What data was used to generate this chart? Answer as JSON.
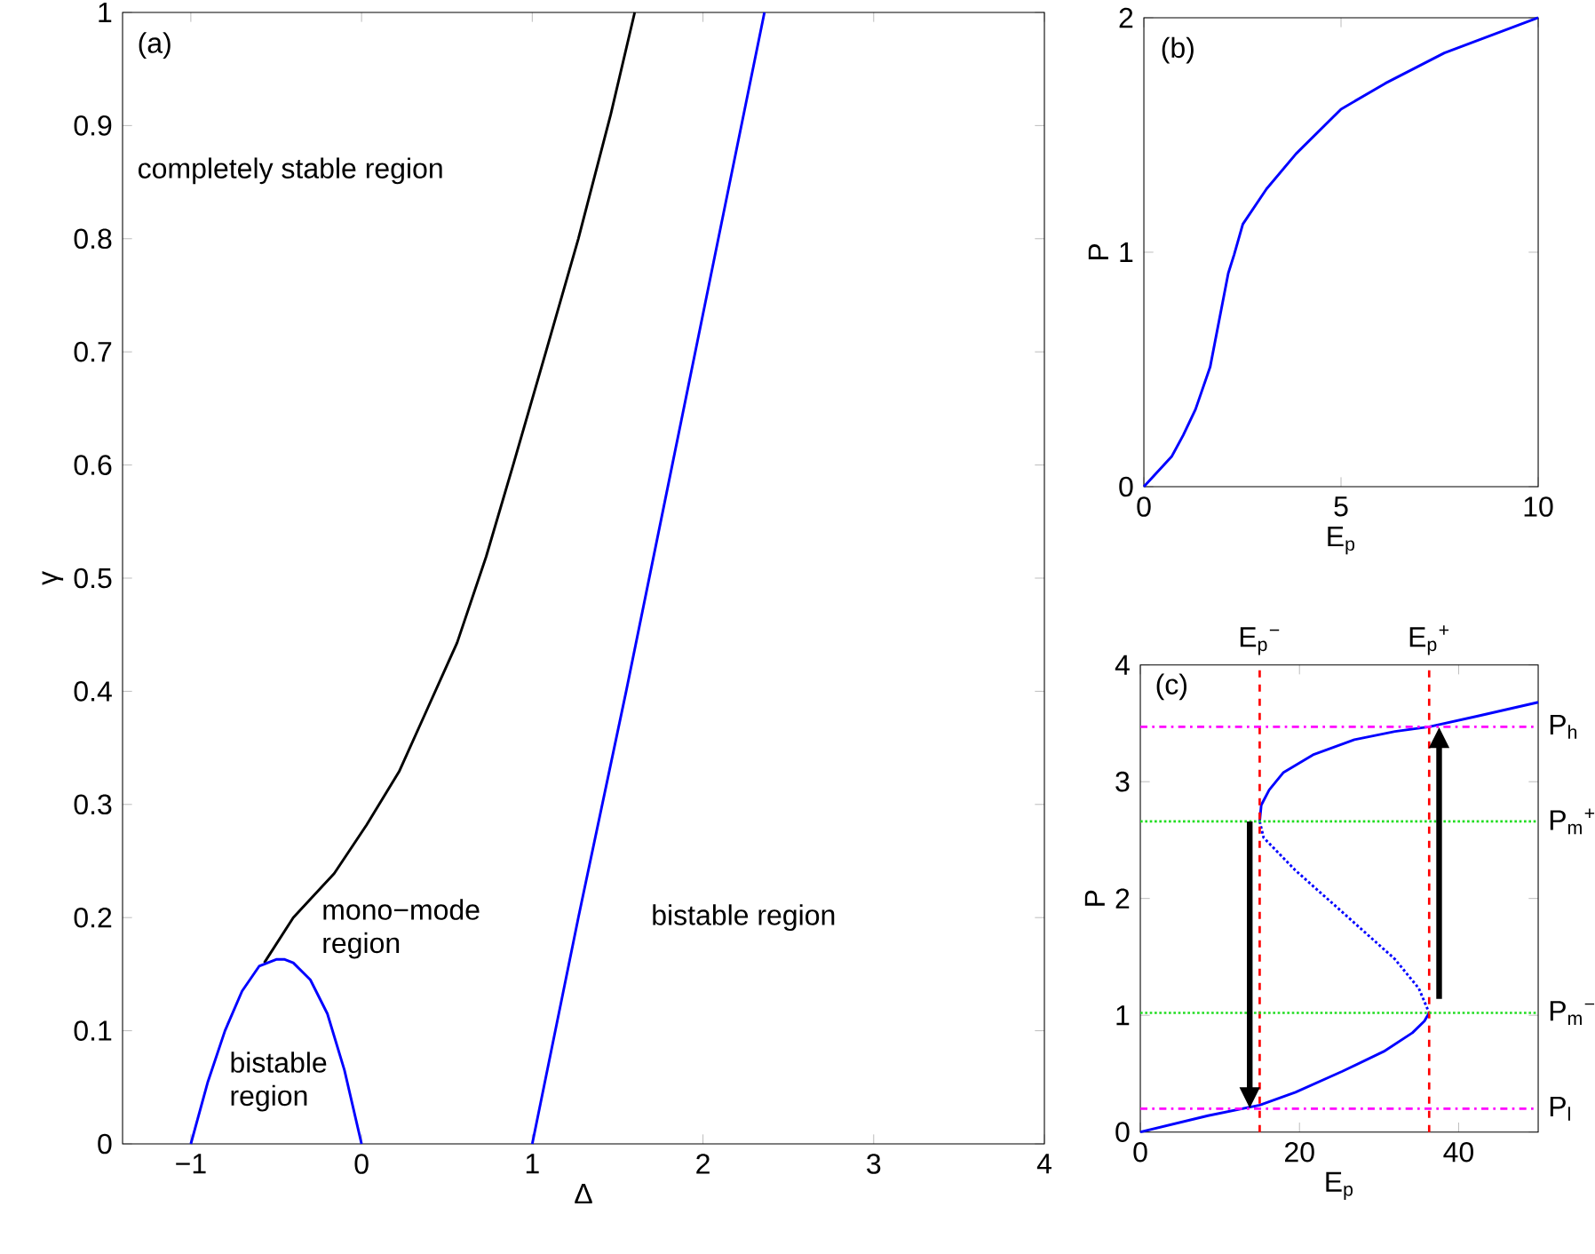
{
  "chart_data": [
    {
      "type": "line",
      "xlabel": "Δ",
      "ylabel": "γ",
      "xlim": [
        -1.4,
        4
      ],
      "ylim": [
        0,
        1
      ],
      "xticks": [
        {
          "value": -1,
          "label": "−1"
        },
        0,
        1,
        2,
        3,
        4
      ],
      "yticks": [
        0,
        0.1,
        0.2,
        0.3,
        0.4,
        0.5,
        0.6,
        0.7,
        0.8,
        0.9,
        1
      ],
      "annotations": [
        "(a)",
        "completely stable region",
        "mono−mode region",
        "bistable region",
        "bistable region"
      ],
      "series": [
        {
          "color": "#000000",
          "x": [
            -0.57,
            -0.4,
            -0.16,
            0.03,
            0.22,
            0.39,
            0.56,
            0.73,
            0.89,
            1.08,
            1.27,
            1.46,
            1.6
          ],
          "values": [
            0.16,
            0.2,
            0.239,
            0.282,
            0.329,
            0.386,
            0.443,
            0.519,
            0.601,
            0.7,
            0.8,
            0.91,
            1.0
          ]
        },
        {
          "color": "#0000ff",
          "x": [
            -1,
            -0.9,
            -0.8,
            -0.7,
            -0.6,
            -0.5,
            -0.45,
            -0.4,
            -0.3,
            -0.2,
            -0.1,
            0
          ],
          "values": [
            0,
            0.055,
            0.1,
            0.135,
            0.157,
            0.163,
            0.163,
            0.16,
            0.145,
            0.115,
            0.065,
            0
          ]
        },
        {
          "color": "#0000ff",
          "x": [
            1,
            1.27,
            1.55,
            1.82,
            2.09,
            2.36
          ],
          "values": [
            0,
            0.2,
            0.4,
            0.6,
            0.8,
            1.0
          ]
        }
      ]
    },
    {
      "type": "line",
      "xlabel": "E$_{p}$",
      "ylabel": "P",
      "xlim": [
        0,
        10
      ],
      "ylim": [
        0,
        2
      ],
      "xticks": [
        0,
        5,
        10
      ],
      "yticks": [
        0,
        1,
        2
      ],
      "annotations": [
        "(b)"
      ],
      "series": [
        {
          "color": "#0000ff",
          "x": [
            0,
            0.71,
            1.0,
            1.31,
            1.68,
            1.91,
            2.14,
            2.29,
            2.51,
            3.11,
            3.86,
            5,
            6.12,
            7.62,
            10
          ],
          "values": [
            0,
            0.13,
            0.22,
            0.33,
            0.51,
            0.71,
            0.91,
            0.99,
            1.12,
            1.27,
            1.42,
            1.61,
            1.72,
            1.85,
            2
          ]
        }
      ]
    },
    {
      "type": "line",
      "xlabel": "E$_{p}$",
      "ylabel": "P",
      "xlim": [
        0,
        50
      ],
      "ylim": [
        0,
        4
      ],
      "xticks": [
        0,
        20,
        40
      ],
      "yticks": [
        0,
        1,
        2,
        3,
        4
      ],
      "annotations": [
        "(c)"
      ],
      "ref_lines": [
        {
          "axis": "x",
          "value": 15,
          "label": "E$_{p}$$^{−}$",
          "color": "#ff0000",
          "line_style": "dashed"
        },
        {
          "axis": "x",
          "value": 36.3,
          "label": "E$_{p}$$^{+}$",
          "color": "#ff0000",
          "line_style": "dashed"
        },
        {
          "axis": "y",
          "value": 3.47,
          "label": "P$_{h}$",
          "color": "#ff00ff",
          "line_style": "dashdot"
        },
        {
          "axis": "y",
          "value": 2.66,
          "label": "P$_{m}$$^{+}$",
          "color": "#22dd22",
          "line_style": "dotted"
        },
        {
          "axis": "y",
          "value": 1.02,
          "label": "P$_{m}$$^{−}$",
          "color": "#22dd22",
          "line_style": "dotted"
        },
        {
          "axis": "y",
          "value": 0.2,
          "label": "P$_{l}$",
          "color": "#ff00ff",
          "line_style": "dashdot"
        }
      ],
      "series": [
        {
          "color": "#0000ff",
          "x": [
            0,
            8.5,
            15,
            19.5,
            25.4,
            30.6,
            34.2,
            35.7,
            36.3
          ],
          "values": [
            0,
            0.14,
            0.23,
            0.34,
            0.52,
            0.69,
            0.85,
            0.95,
            1.02
          ]
        },
        {
          "color": "#0000ff",
          "line_style": "dotted",
          "x": [
            15,
            15.5,
            19.5,
            26.1,
            32,
            35,
            36.3
          ],
          "values": [
            2.66,
            2.52,
            2.24,
            1.84,
            1.48,
            1.23,
            1.02
          ]
        },
        {
          "color": "#0000ff",
          "x": [
            15,
            15.2,
            16.2,
            18,
            21.7,
            26.9,
            32,
            36.3,
            42.3,
            50
          ],
          "values": [
            2.66,
            2.8,
            2.93,
            3.08,
            3.23,
            3.36,
            3.43,
            3.47,
            3.56,
            3.68
          ]
        }
      ]
    }
  ]
}
